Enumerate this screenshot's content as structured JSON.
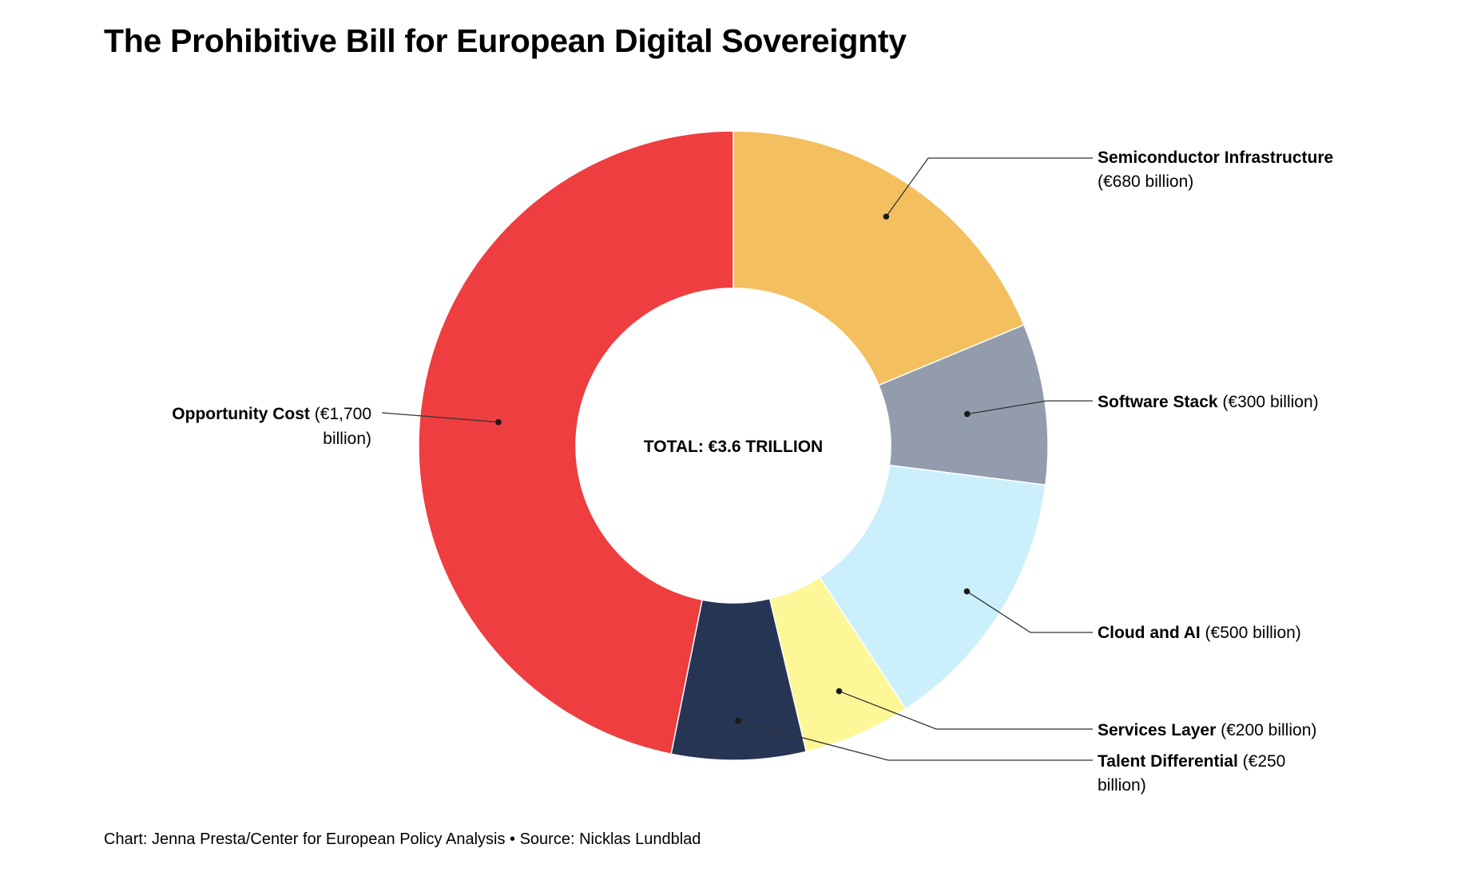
{
  "title": "The Prohibitive Bill for European Digital Sovereignty",
  "footer": "Chart: Jenna Presta/Center for European Policy Analysis • Source: Nicklas Lundblad",
  "chart_data": {
    "type": "pie",
    "subtype": "donut",
    "title": "The Prohibitive Bill for European Digital Sovereignty",
    "center_label": "TOTAL: €3.6 TRILLION",
    "unit": "€ billion",
    "slices": [
      {
        "name": "Semiconductor Infrastructure",
        "value": 680,
        "value_text": "(€680 billion)",
        "color": "#F3BF5F"
      },
      {
        "name": "Software Stack",
        "value": 300,
        "value_text": "(€300 billion)",
        "color": "#939CAD"
      },
      {
        "name": "Cloud and AI",
        "value": 500,
        "value_text": "(€500 billion)",
        "color": "#CBF0FC"
      },
      {
        "name": "Services Layer",
        "value": 200,
        "value_text": "(€200 billion)",
        "color": "#FDF797"
      },
      {
        "name": "Talent Differential",
        "value": 250,
        "value_text": "(€250 billion)",
        "color": "#273555"
      },
      {
        "name": "Opportunity Cost",
        "value": 1700,
        "value_text": "(€1,700 billion)",
        "color": "#EE3E40"
      }
    ]
  }
}
